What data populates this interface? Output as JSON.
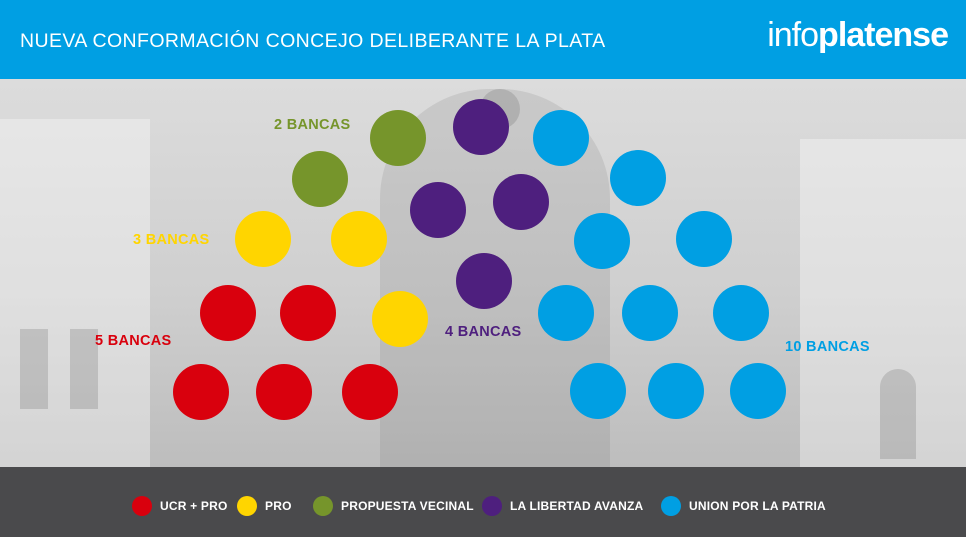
{
  "header": {
    "title": "NUEVA CONFORMACIÓN CONCEJO DELIBERANTE LA PLATA",
    "logo_light": "info",
    "logo_bold": "platense"
  },
  "colors": {
    "header_bg": "#009fe3",
    "ucr_pro": "#d9000d",
    "pro": "#ffd500",
    "propuesta_vecinal": "#76952b",
    "libertad_avanza": "#4e1f7e",
    "union_patria": "#009fe3",
    "footer_bg": "#4a4a4c"
  },
  "groups": [
    {
      "label": "5 BANCAS",
      "party": "UCR + PRO",
      "seats": 5,
      "color": "#d9000d"
    },
    {
      "label": "3 BANCAS",
      "party": "PRO",
      "seats": 3,
      "color": "#ffd500"
    },
    {
      "label": "2 BANCAS",
      "party": "PROPUESTA VECINAL",
      "seats": 2,
      "color": "#76952b"
    },
    {
      "label": "4 BANCAS",
      "party": "LA LIBERTAD AVANZA",
      "seats": 4,
      "color": "#4e1f7e"
    },
    {
      "label": "10 BANCAS",
      "party": "UNION POR LA PATRIA",
      "seats": 10,
      "color": "#009fe3"
    }
  ],
  "legend": [
    {
      "label": "UCR + PRO",
      "color": "#d9000d"
    },
    {
      "label": "PRO",
      "color": "#ffd500"
    },
    {
      "label": "PROPUESTA VECINAL",
      "color": "#76952b"
    },
    {
      "label": "LA LIBERTAD AVANZA",
      "color": "#4e1f7e"
    },
    {
      "label": "UNION POR LA PATRIA",
      "color": "#009fe3"
    }
  ]
}
